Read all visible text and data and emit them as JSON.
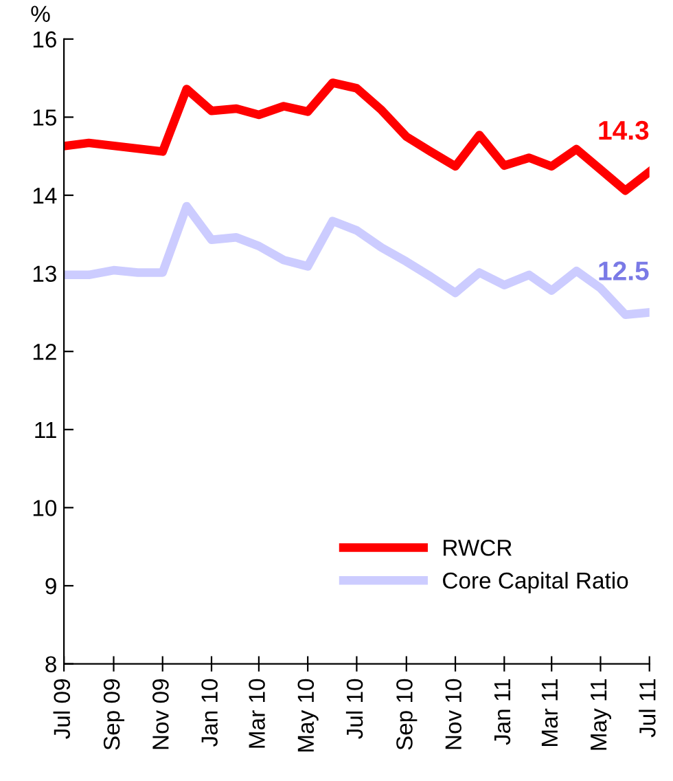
{
  "chart_data": {
    "type": "line",
    "ylabel": "%",
    "xlim": [
      "2009-07",
      "2011-07"
    ],
    "xticks": [
      {
        "value": "2009-07",
        "label": "Jul 09"
      },
      {
        "value": "2009-09",
        "label": "Sep 09"
      },
      {
        "value": "2009-11",
        "label": "Nov 09"
      },
      {
        "value": "2010-01",
        "label": "Jan 10"
      },
      {
        "value": "2010-03",
        "label": "Mar 10"
      },
      {
        "value": "2010-05",
        "label": "May 10"
      },
      {
        "value": "2010-07",
        "label": "Jul 10"
      },
      {
        "value": "2010-09",
        "label": "Sep 10"
      },
      {
        "value": "2010-11",
        "label": "Nov 10"
      },
      {
        "value": "2011-01",
        "label": "Jan 11"
      },
      {
        "value": "2011-03",
        "label": "Mar 11"
      },
      {
        "value": "2011-05",
        "label": "May 11"
      },
      {
        "value": "2011-07",
        "label": "Jul 11"
      }
    ],
    "ylim": [
      8,
      16
    ],
    "yticks": [
      8,
      9,
      10,
      11,
      12,
      13,
      14,
      15,
      16
    ],
    "grid": false,
    "legend": "bottom right",
    "marker": "none",
    "line_style": "solid",
    "series": [
      {
        "name": "RWCR",
        "color": "#ff0000",
        "x": [
          "2009-07",
          "2009-08",
          "2009-11",
          "2009-12",
          "2010-01",
          "2010-02",
          "2010-03",
          "2010-04",
          "2010-05",
          "2010-06",
          "2010-07",
          "2010-08",
          "2010-09",
          "2010-10",
          "2010-11",
          "2010-12",
          "2011-01",
          "2011-02",
          "2011-03",
          "2011-04",
          "2011-06",
          "2011-07"
        ],
        "values": [
          14.63,
          14.67,
          14.56,
          15.36,
          15.08,
          15.11,
          15.03,
          15.14,
          15.07,
          15.44,
          15.37,
          15.09,
          14.75,
          14.56,
          14.37,
          14.77,
          14.38,
          14.48,
          14.37,
          14.59,
          14.06,
          14.3
        ]
      },
      {
        "name": "Core Capital Ratio",
        "color": "#ccccff",
        "x": [
          "2009-07",
          "2009-08",
          "2009-09",
          "2009-10",
          "2009-11",
          "2009-12",
          "2010-01",
          "2010-02",
          "2010-03",
          "2010-04",
          "2010-05",
          "2010-06",
          "2010-07",
          "2010-08",
          "2010-09",
          "2010-10",
          "2010-11",
          "2010-12",
          "2011-01",
          "2011-02",
          "2011-03",
          "2011-04",
          "2011-05",
          "2011-06",
          "2011-07"
        ],
        "values": [
          12.98,
          12.98,
          13.04,
          13.01,
          13.01,
          13.86,
          13.43,
          13.46,
          13.35,
          13.17,
          13.09,
          13.67,
          13.55,
          13.33,
          13.15,
          12.96,
          12.75,
          13.01,
          12.85,
          12.98,
          12.78,
          13.03,
          12.81,
          12.47,
          12.5
        ]
      }
    ],
    "annotations": [
      {
        "text": "14.3",
        "x": "2011-07",
        "y": 14.3
      },
      {
        "text": "12.5",
        "x": "2011-07",
        "y": 12.5
      }
    ]
  }
}
